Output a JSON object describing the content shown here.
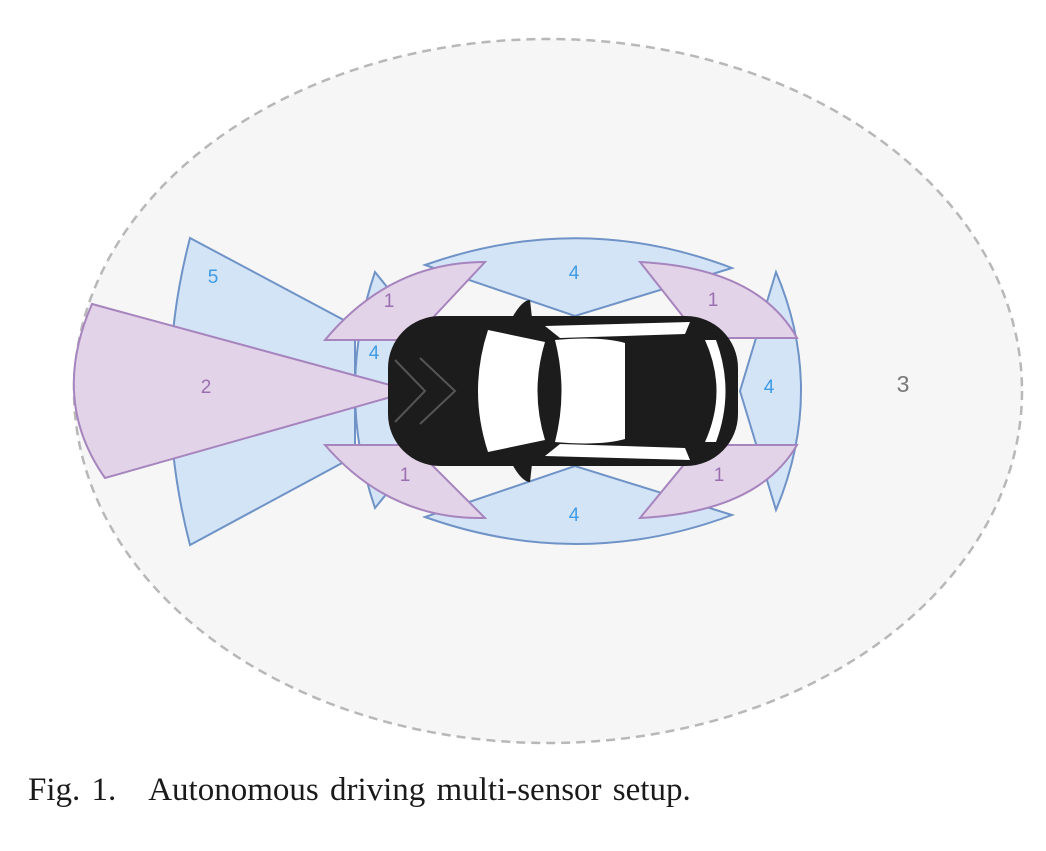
{
  "colors": {
    "blue_fill": "#d4e4f7",
    "blue_stroke": "#6f93c7",
    "blue_label": "#3d9be8",
    "purple_fill": "#e2d3e8",
    "purple_stroke": "#a684bd",
    "purple_label": "#9a6fb0",
    "outer_fill": "#f6f6f6",
    "outer_stroke": "#b8b8b8",
    "gray_label": "#777777",
    "car": "#1c1c1c"
  },
  "labels": {
    "rear_long": "5",
    "rear_center": "2",
    "side_top": "4",
    "side_bottom": "4",
    "front": "4",
    "rear_left": "4",
    "corner_tl": "1",
    "corner_tr": "1",
    "corner_bl": "1",
    "corner_br": "1",
    "surround": "3"
  },
  "caption": {
    "number": "Fig. 1.",
    "text": "Autonomous driving multi-sensor setup."
  }
}
